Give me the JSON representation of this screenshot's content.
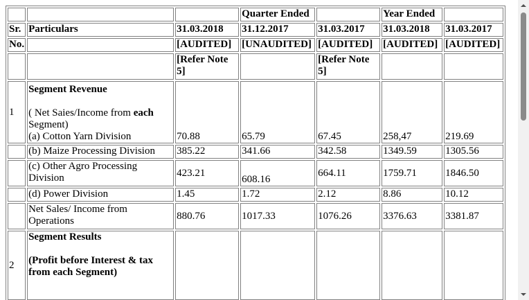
{
  "table": {
    "header_row1": {
      "quarter_ended": "Quarter Ended",
      "year_ended": "Year Ended"
    },
    "header_row2": {
      "sr": "Sr.",
      "particulars": "Particulars",
      "col1": "31.03.2018",
      "col2": "31.12.2017",
      "col3": "31.03.2017",
      "col4": "31.03.2018",
      "col5": "31.03.2017"
    },
    "header_row3": {
      "no": "No.",
      "col1": "[AUDITED]",
      "col2": "[UNAUDITED]",
      "col3": "[AUDITED]",
      "col4": "[AUDITED]",
      "col5": "[AUDITED]"
    },
    "header_row4": {
      "col1": "[Refer Note 5]",
      "col3": "[Refer Note 5]"
    },
    "section1": {
      "sr": "1",
      "title": "Segment Revenue",
      "subtitle_plain": "( Net Saies/Income from ",
      "subtitle_bold": "each",
      "subtitle_rest": " Segment)",
      "rows": [
        {
          "label": "(a) Cotton Yarn Division",
          "values": [
            "70.88",
            "65.79",
            "67.45",
            "258,47",
            "219.69"
          ]
        },
        {
          "label": "(b) Maize Processing Division",
          "values": [
            "385.22",
            "341.66",
            "342.58",
            "1349.59",
            "1305.56"
          ]
        },
        {
          "label": "(c) Other Agro Processing Division",
          "values": [
            "423.21",
            "608.16",
            "664.11",
            "1759.71",
            "1846.50"
          ]
        },
        {
          "label": "(d) Power Division",
          "values": [
            "1.45",
            "1.72",
            "2.12",
            "8.86",
            "10.12"
          ]
        },
        {
          "label": "Net Sales/ Income from Operations",
          "values": [
            "880.76",
            "1017.33",
            "1076.26",
            "3376.63",
            "3381.87"
          ]
        }
      ]
    },
    "section2": {
      "sr": "2",
      "title": "Segment Results",
      "subtitle": "(Profit before Interest & tax from each Segment)"
    }
  }
}
